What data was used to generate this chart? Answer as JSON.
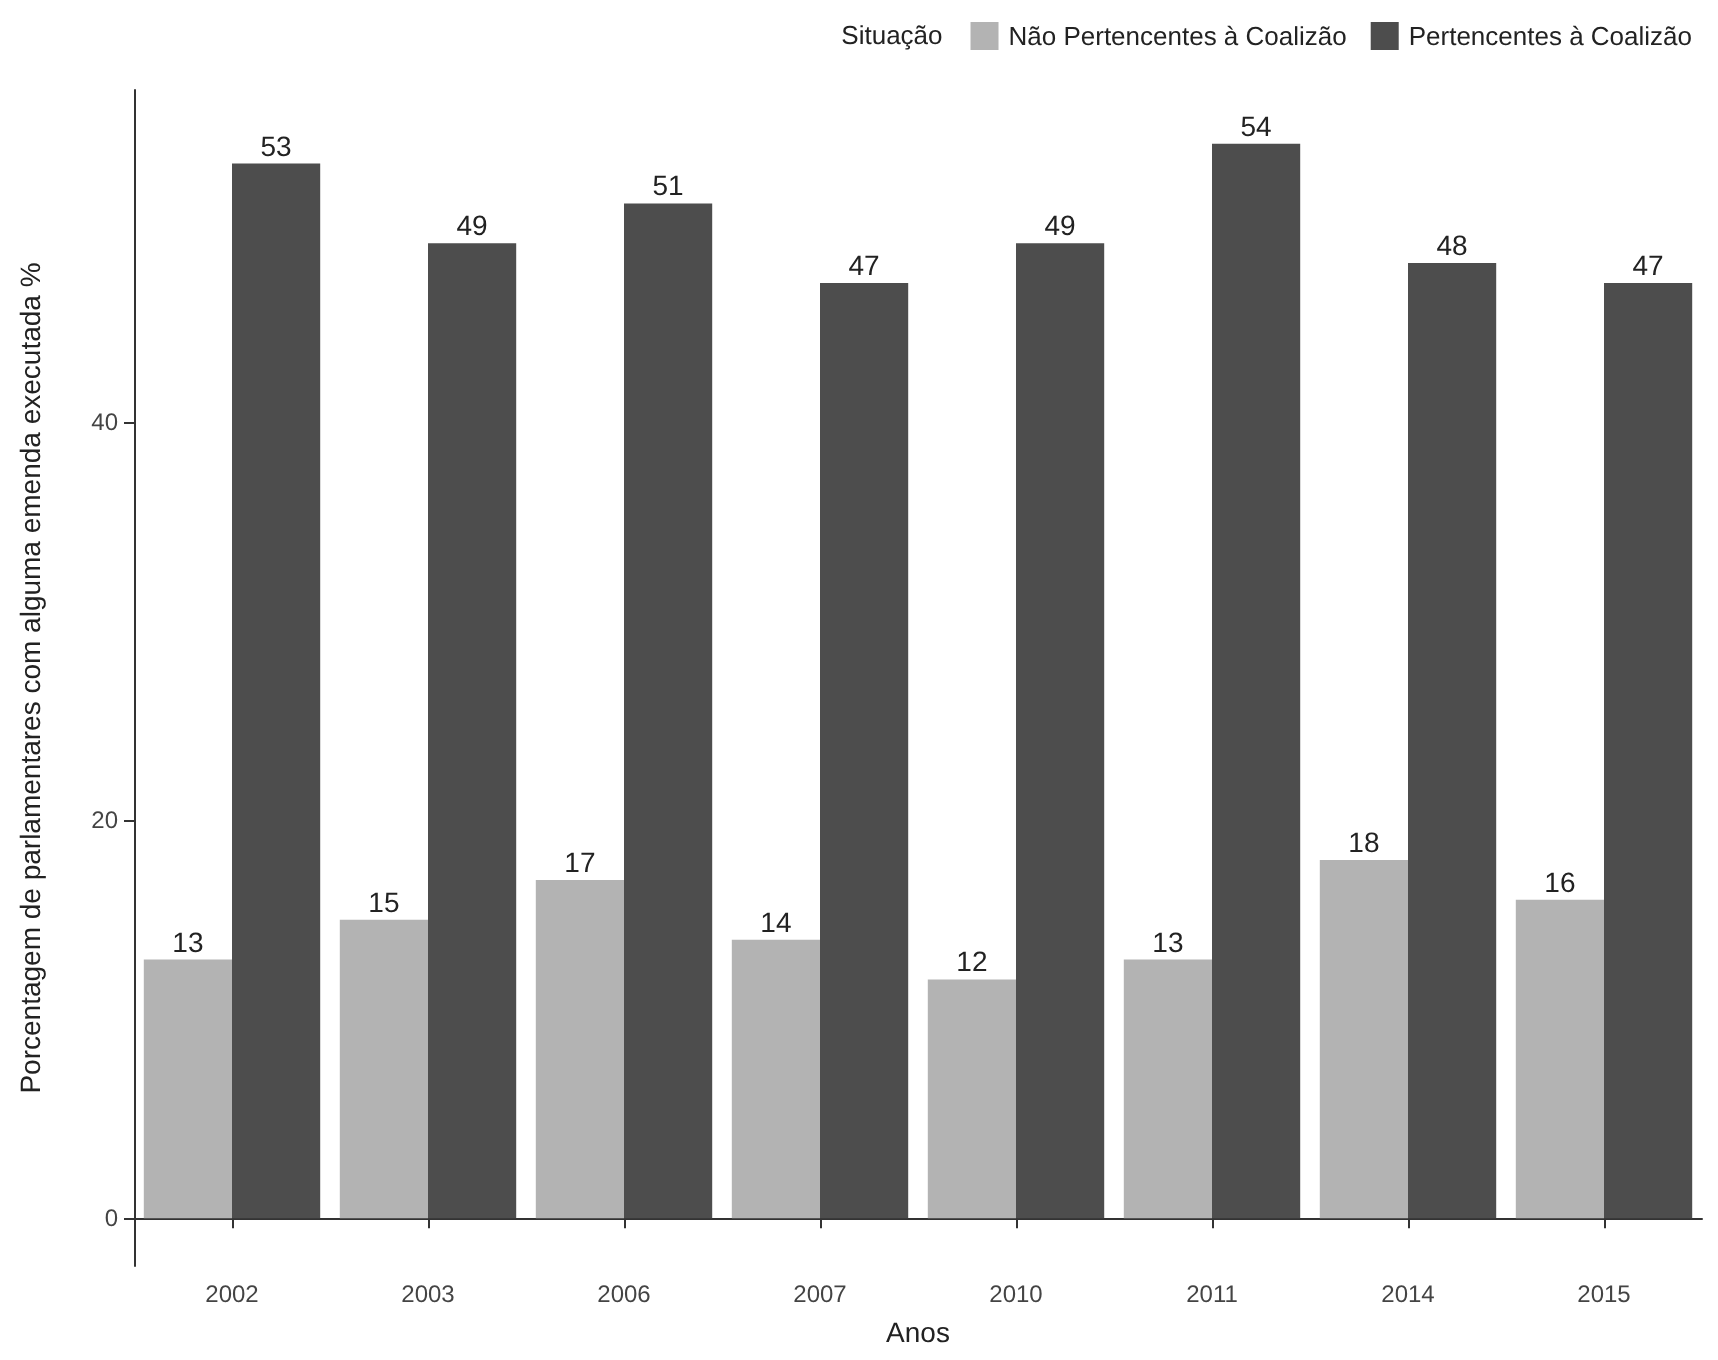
{
  "chart_data": {
    "type": "bar",
    "xlabel": "Anos",
    "ylabel": "Porcentagem de parlamentares com alguma emenda executada %",
    "legend_title": "Situação",
    "categories": [
      "2002",
      "2003",
      "2006",
      "2007",
      "2010",
      "2011",
      "2014",
      "2015"
    ],
    "series": [
      {
        "name": "Não Pertencentes à Coalizão",
        "color": "#b3b3b3",
        "values": [
          13,
          15,
          17,
          14,
          12,
          13,
          18,
          16
        ]
      },
      {
        "name": "Pertencentes à Coalizão",
        "color": "#4d4d4d",
        "values": [
          53,
          49,
          51,
          47,
          49,
          54,
          48,
          47
        ]
      }
    ],
    "ylim": [
      -2.4,
      56.7
    ],
    "yticks": [
      0,
      20,
      40
    ],
    "grid": false,
    "legend": "top right",
    "data_labels": true
  }
}
